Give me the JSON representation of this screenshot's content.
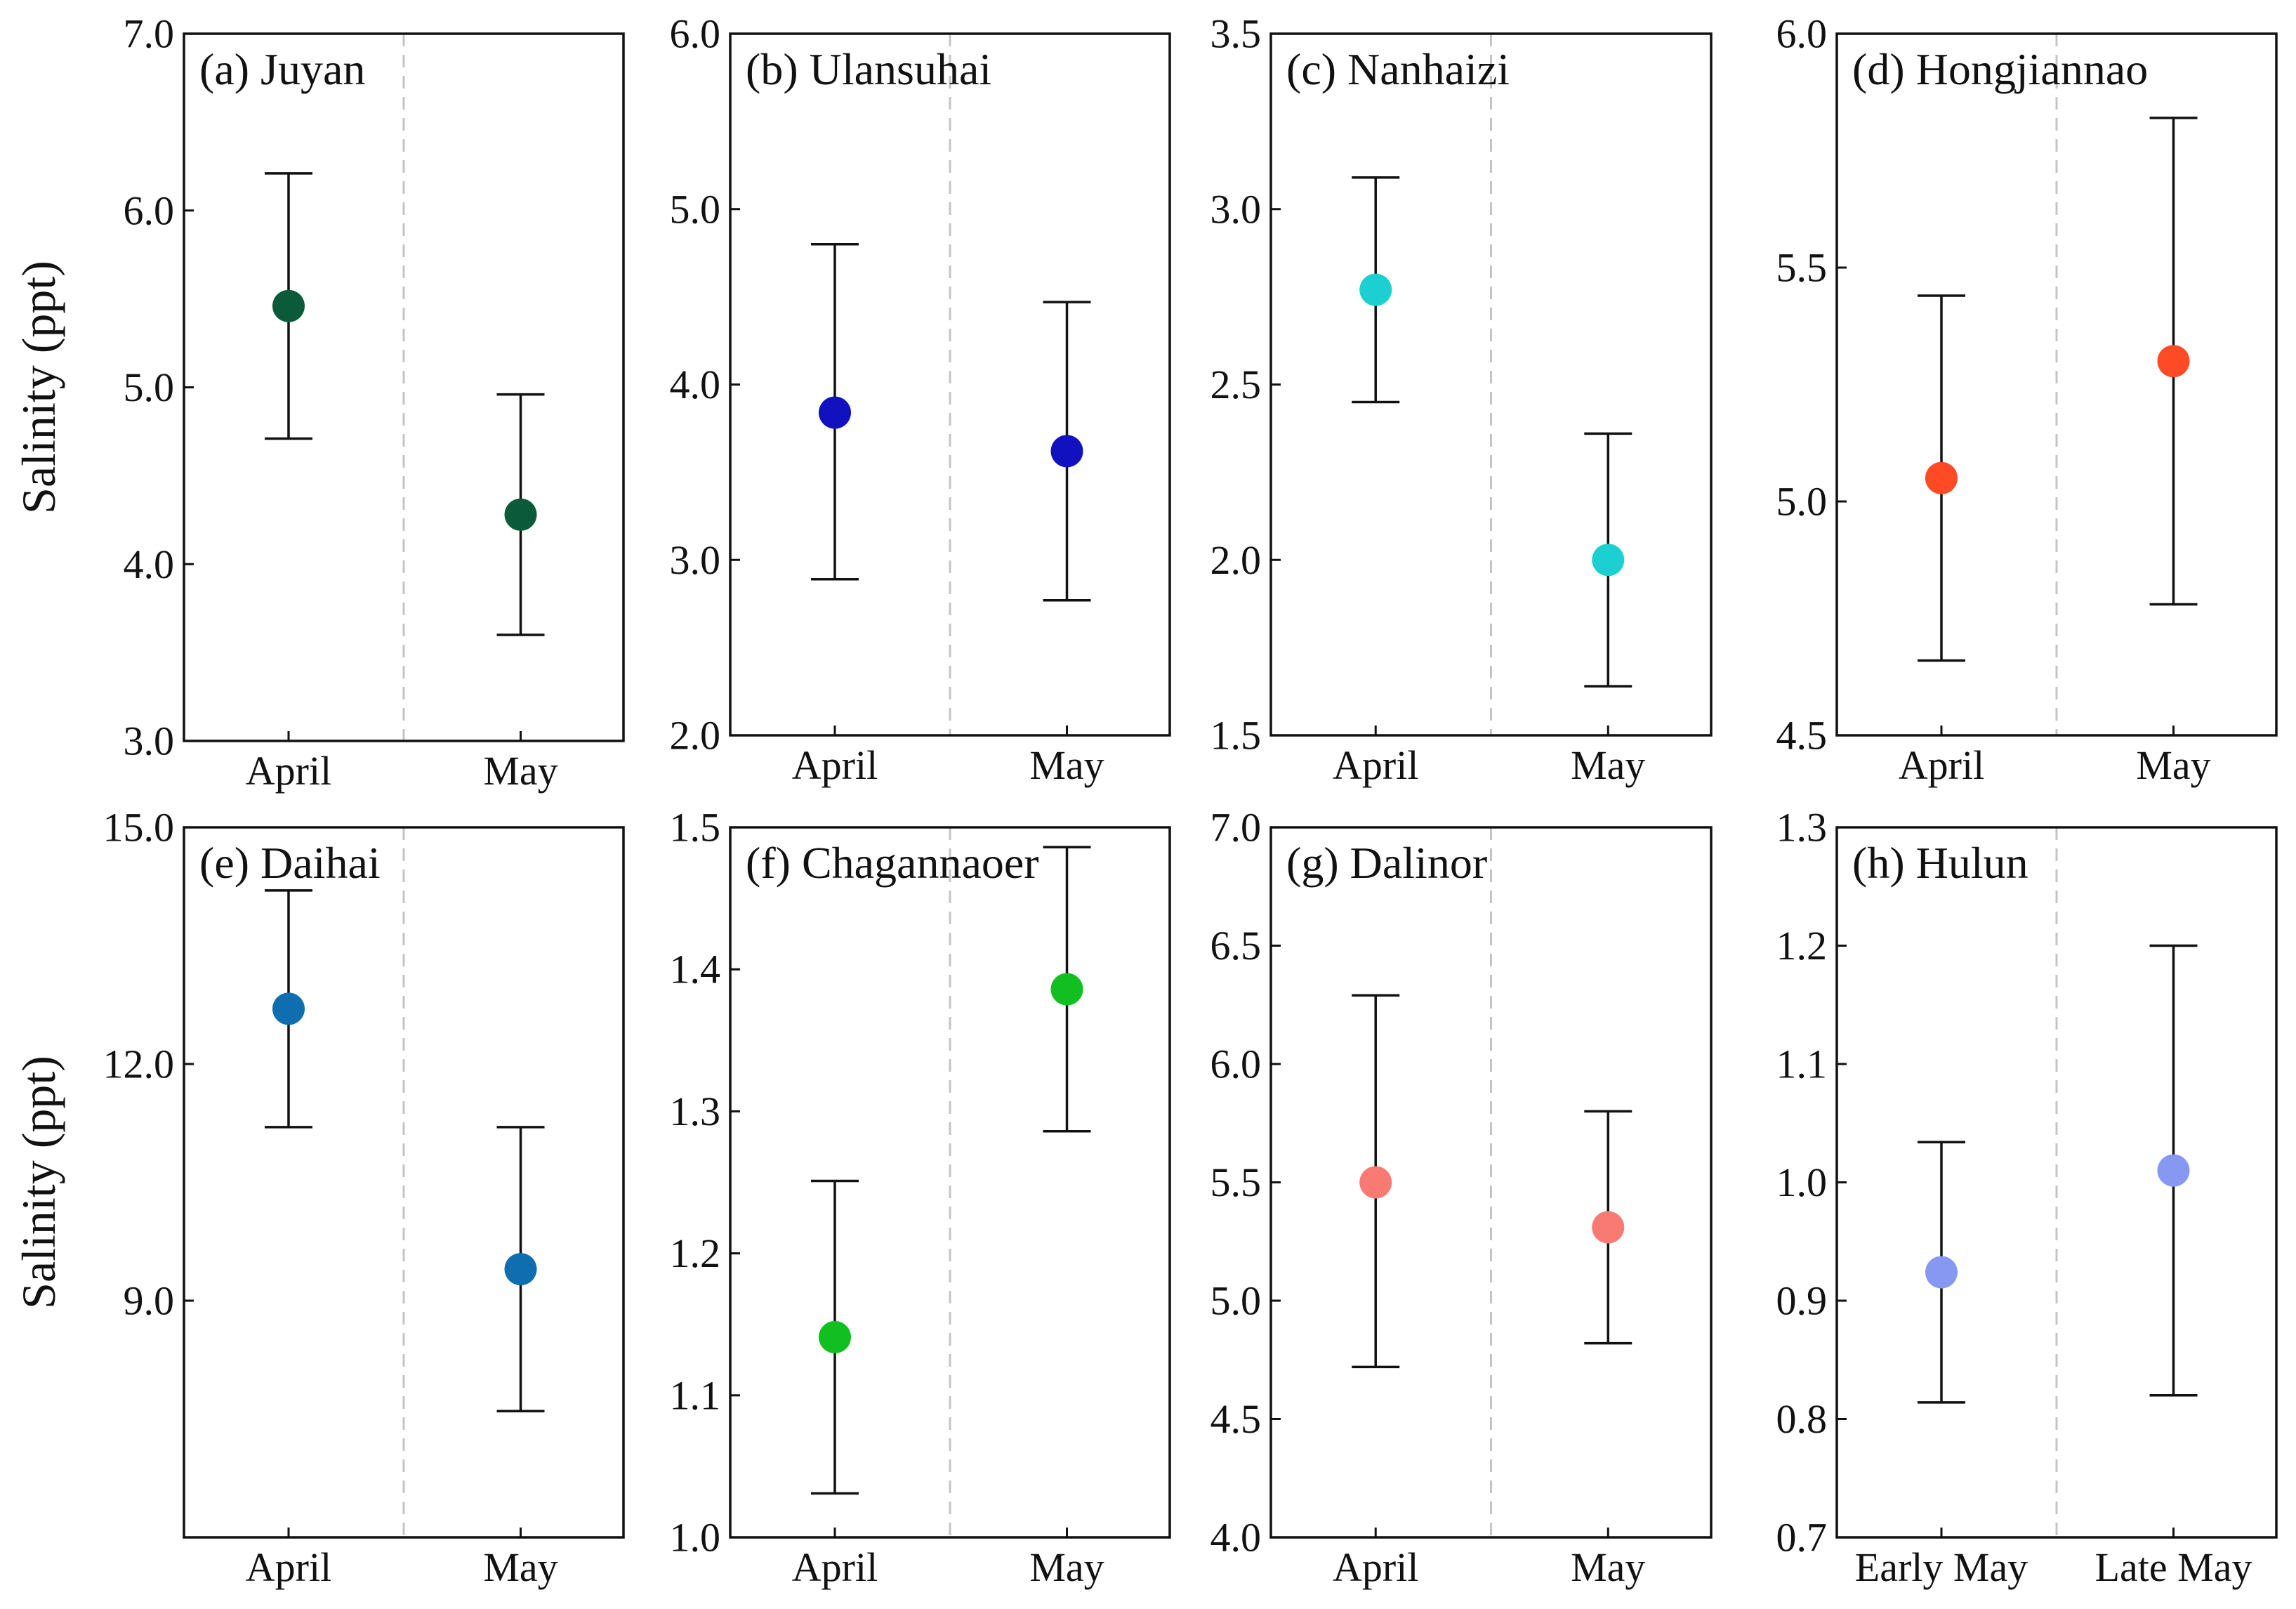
{
  "chart_data": [
    {
      "type": "scatter",
      "panel_label": "(a) Juyan",
      "categories": [
        "April",
        "May"
      ],
      "series": [
        {
          "name": "Salinity",
          "color": "#0b5a3a",
          "values": [
            5.46,
            4.28
          ],
          "error_low": [
            4.71,
            3.6
          ],
          "error_high": [
            6.21,
            4.96
          ]
        }
      ],
      "ylabel": "Salinity (ppt)",
      "ylim": [
        3.0,
        7.0
      ],
      "yticks": [
        "3.0",
        "4.0",
        "5.0",
        "6.0",
        "7.0"
      ]
    },
    {
      "type": "scatter",
      "panel_label": "(b) Ulansuhai",
      "categories": [
        "April",
        "May"
      ],
      "series": [
        {
          "name": "Salinity",
          "color": "#1111bf",
          "values": [
            3.84,
            3.62
          ],
          "error_low": [
            2.89,
            2.77
          ],
          "error_high": [
            4.8,
            4.47
          ]
        }
      ],
      "ylabel": "",
      "ylim": [
        2.0,
        6.0
      ],
      "yticks": [
        "2.0",
        "3.0",
        "4.0",
        "5.0",
        "6.0"
      ]
    },
    {
      "type": "scatter",
      "panel_label": "(c) Nanhaizi",
      "categories": [
        "April",
        "May"
      ],
      "series": [
        {
          "name": "Salinity",
          "color": "#1ccfd0",
          "values": [
            2.77,
            2.0
          ],
          "error_low": [
            2.45,
            1.64
          ],
          "error_high": [
            3.09,
            2.36
          ]
        }
      ],
      "ylabel": "",
      "ylim": [
        1.5,
        3.5
      ],
      "yticks": [
        "1.5",
        "2.0",
        "2.5",
        "3.0",
        "3.5"
      ]
    },
    {
      "type": "scatter",
      "panel_label": "(d) Hongjiannao",
      "categories": [
        "April",
        "May"
      ],
      "series": [
        {
          "name": "Salinity",
          "color": "#ff4a26",
          "values": [
            5.05,
            5.3
          ],
          "error_low": [
            4.66,
            4.78
          ],
          "error_high": [
            5.44,
            5.82
          ]
        }
      ],
      "ylabel": "",
      "ylim": [
        4.5,
        6.0
      ],
      "yticks": [
        "4.5",
        "5.0",
        "5.5",
        "6.0"
      ]
    },
    {
      "type": "scatter",
      "panel_label": "(e) Daihai",
      "categories": [
        "April",
        "May"
      ],
      "series": [
        {
          "name": "Salinity",
          "color": "#0f6eb0",
          "values": [
            12.7,
            9.4
          ],
          "error_low": [
            11.2,
            7.6
          ],
          "error_high": [
            14.2,
            11.2
          ]
        }
      ],
      "ylabel": "Salinity (ppt)",
      "ylim": [
        6.0,
        15.0
      ],
      "yticks": [
        "9.0",
        "12.0",
        "15.0"
      ]
    },
    {
      "type": "scatter",
      "panel_label": "(f) Chagannaoer",
      "categories": [
        "April",
        "May"
      ],
      "series": [
        {
          "name": "Salinity",
          "color": "#12bf20",
          "values": [
            1.141,
            1.386
          ],
          "error_low": [
            1.031,
            1.286
          ],
          "error_high": [
            1.251,
            1.486
          ]
        }
      ],
      "ylabel": "",
      "ylim": [
        1.0,
        1.5
      ],
      "yticks": [
        "1.0",
        "1.1",
        "1.2",
        "1.3",
        "1.4",
        "1.5"
      ]
    },
    {
      "type": "scatter",
      "panel_label": "(g) Dalinor",
      "categories": [
        "April",
        "May"
      ],
      "series": [
        {
          "name": "Salinity",
          "color": "#f87a72",
          "values": [
            5.5,
            5.31
          ],
          "error_low": [
            4.72,
            4.82
          ],
          "error_high": [
            6.29,
            5.8
          ]
        }
      ],
      "ylabel": "",
      "ylim": [
        4.0,
        7.0
      ],
      "yticks": [
        "4.0",
        "4.5",
        "5.0",
        "5.5",
        "6.0",
        "6.5",
        "7.0"
      ]
    },
    {
      "type": "scatter",
      "panel_label": "(h) Hulun",
      "categories": [
        "Early May",
        "Late May"
      ],
      "series": [
        {
          "name": "Salinity",
          "color": "#8798f3",
          "values": [
            0.924,
            1.01
          ],
          "error_low": [
            0.814,
            0.82
          ],
          "error_high": [
            1.034,
            1.2
          ]
        }
      ],
      "ylabel": "",
      "ylim": [
        0.7,
        1.3
      ],
      "yticks": [
        "0.7",
        "0.8",
        "0.9",
        "1.0",
        "1.1",
        "1.2",
        "1.3"
      ]
    }
  ]
}
